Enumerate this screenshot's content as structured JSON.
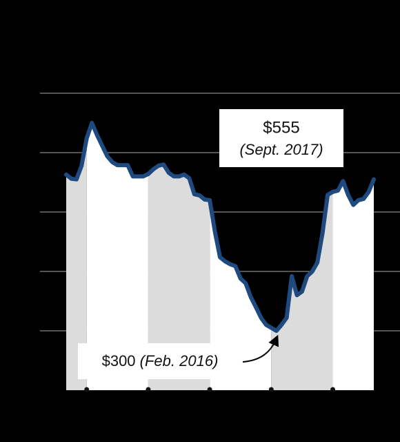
{
  "chart_data": {
    "type": "line",
    "categories": [
      null,
      null,
      null,
      null,
      null,
      null,
      null,
      null,
      null,
      null,
      null,
      null,
      null,
      null,
      null,
      null,
      null,
      null,
      null,
      null,
      null,
      null,
      null,
      null,
      null,
      null,
      null,
      null,
      null,
      null,
      null,
      null,
      null,
      null,
      null,
      null,
      null,
      null,
      null,
      null,
      null,
      null,
      null,
      null,
      null,
      null,
      null,
      null,
      null,
      null,
      null,
      null,
      null,
      null,
      null,
      null,
      null,
      null,
      null,
      null,
      null
    ],
    "values": [
      563,
      556,
      555,
      578,
      624,
      650,
      630,
      612,
      594,
      584,
      579,
      579,
      579,
      560,
      560,
      560,
      564,
      572,
      578,
      580,
      566,
      560,
      560,
      563,
      557,
      530,
      528,
      521,
      520,
      467,
      424,
      417,
      412,
      409,
      388,
      380,
      357,
      340,
      322,
      310,
      305,
      300,
      310,
      322,
      392,
      360,
      366,
      392,
      400,
      415,
      465,
      529,
      534,
      536,
      552,
      529,
      512,
      520,
      522,
      534,
      555
    ],
    "color": "#1f4a7f",
    "ylim": [
      200,
      700
    ],
    "yticks": [
      300,
      400,
      500,
      600,
      700
    ],
    "grid": true,
    "xlim": [
      0,
      60
    ],
    "xticks": [
      4,
      16,
      28,
      40,
      52
    ],
    "annotations": [
      {
        "text": "$555",
        "detail": "(Sept. 2017)"
      },
      {
        "text": "$300",
        "detail": "(Feb. 2016)"
      }
    ]
  }
}
